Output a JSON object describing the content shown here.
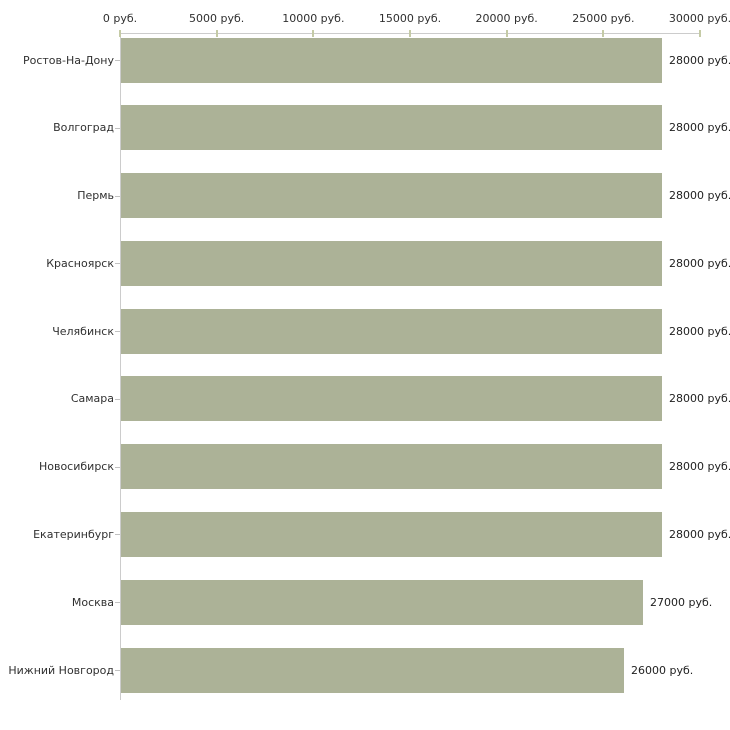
{
  "chart_data": {
    "type": "bar",
    "orientation": "horizontal",
    "title": "",
    "xlabel": "",
    "ylabel": "",
    "unit_suffix": " руб.",
    "categories": [
      "Ростов-На-Дону",
      "Волгоград",
      "Пермь",
      "Красноярск",
      "Челябинск",
      "Самара",
      "Новосибирск",
      "Екатеринбург",
      "Москва",
      "Нижний Новгород"
    ],
    "values": [
      28000,
      28000,
      28000,
      28000,
      28000,
      28000,
      28000,
      28000,
      27000,
      26000
    ],
    "value_labels": [
      "28000 руб.",
      "28000 руб.",
      "28000 руб.",
      "28000 руб.",
      "28000 руб.",
      "28000 руб.",
      "28000 руб.",
      "28000 руб.",
      "27000 руб.",
      "26000 руб."
    ],
    "xlim": [
      0,
      30000
    ],
    "x_ticks": [
      0,
      5000,
      10000,
      15000,
      20000,
      25000,
      30000
    ],
    "x_tick_labels": [
      "0 руб.",
      "5000 руб.",
      "10000 руб.",
      "15000 руб.",
      "20000 руб.",
      "25000 руб.",
      "30000 руб."
    ],
    "grid": false,
    "legend": false,
    "colors": {
      "bar": "#acb297",
      "axis_line": "#cccccc",
      "x_tick": "#c5cba6",
      "category_tick": "#c2c2c2",
      "label_text": "#303030",
      "value_text": "#1f1f1f",
      "background": "#ffffff"
    }
  }
}
